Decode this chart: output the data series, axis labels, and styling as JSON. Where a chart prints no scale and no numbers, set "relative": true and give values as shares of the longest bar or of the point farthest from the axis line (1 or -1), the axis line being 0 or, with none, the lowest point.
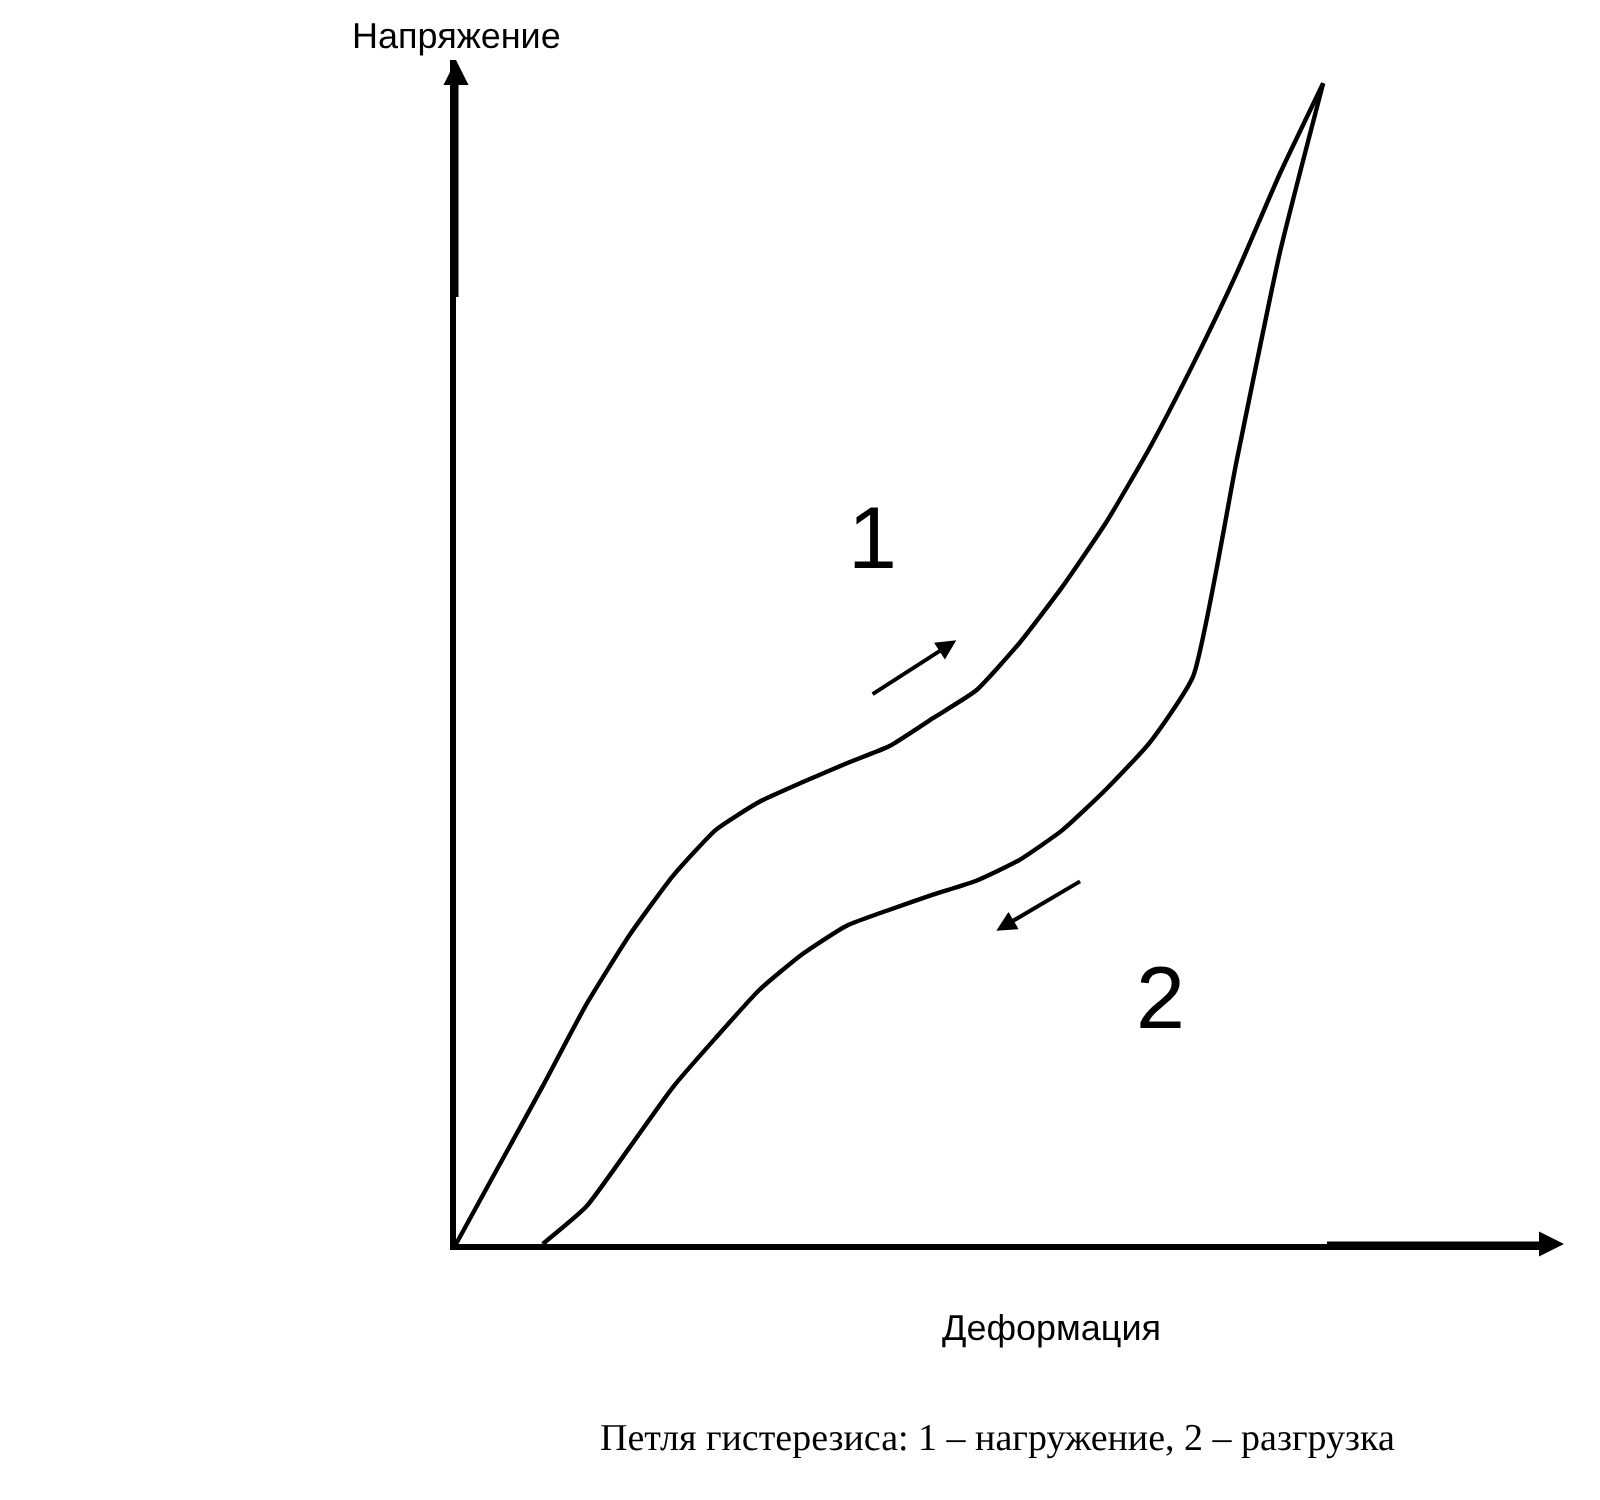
{
  "chart_data": {
    "type": "line",
    "relative": true,
    "xlabel": "Деформация",
    "ylabel": "Напряжение",
    "annotations": [
      "Петля гистерезиса: 1 – нагружение, 2 – разгрузка"
    ],
    "categories": [
      null,
      null,
      null,
      null,
      null,
      null,
      null,
      null,
      null,
      null,
      null,
      null,
      null,
      null,
      null,
      null,
      null,
      null,
      null,
      null,
      null,
      null,
      null,
      null,
      null,
      null
    ],
    "legend": false,
    "marker": "none",
    "line_style": "solid",
    "series": [
      {
        "name": "1",
        "color": "#000000",
        "values": [
          0,
          0.068,
          0.136,
          0.206,
          0.266,
          0.317,
          0.357,
          0.381,
          0.398,
          0.414,
          0.429,
          0.453,
          0.477,
          0.518,
          0.567,
          0.622,
          0.686,
          0.758,
          0.836,
          0.922,
          1,
          null,
          null,
          null,
          null,
          null
        ]
      },
      {
        "name": "2",
        "color": "#000000",
        "values": [
          null,
          null,
          0,
          0.032,
          0.083,
          0.135,
          0.178,
          0.219,
          0.25,
          0.274,
          0.288,
          0.301,
          0.313,
          0.331,
          0.357,
          0.392,
          0.432,
          0.489,
          0.674,
          0.854,
          1,
          null,
          null,
          null,
          null,
          null
        ]
      }
    ]
  }
}
